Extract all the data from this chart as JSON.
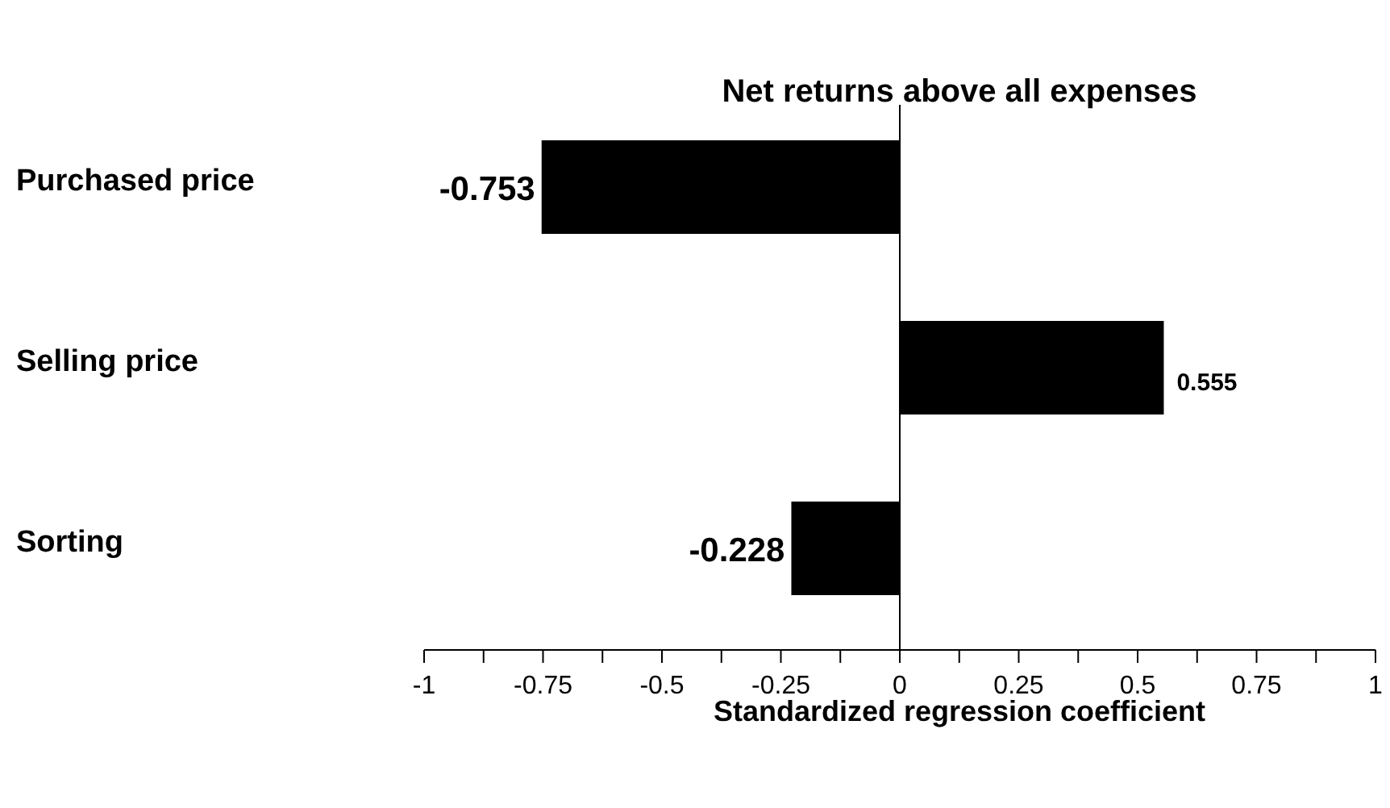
{
  "chart_data": {
    "type": "bar",
    "orientation": "horizontal",
    "title": "Net returns above all expenses",
    "xlabel": "Standardized regression coefficient",
    "categories": [
      "Purchased price",
      "Selling price",
      "Sorting"
    ],
    "values": [
      -0.753,
      0.555,
      -0.228
    ],
    "color": "#000000",
    "data_labels": true,
    "xlim": [
      -1,
      1
    ],
    "xticks": [
      -1,
      {
        "value": -0.875,
        "label": null
      },
      -0.75,
      {
        "value": -0.625,
        "label": null
      },
      -0.5,
      {
        "value": -0.375,
        "label": null
      },
      -0.25,
      {
        "value": -0.125,
        "label": null
      },
      0,
      {
        "value": 0.125,
        "label": null
      },
      0.25,
      {
        "value": 0.375,
        "label": null
      },
      0.5,
      {
        "value": 0.625,
        "label": null
      },
      0.75,
      {
        "value": 0.875,
        "label": null
      },
      1
    ],
    "ref_lines": [
      {
        "axis": "x",
        "value": 0
      }
    ],
    "grid": false
  }
}
